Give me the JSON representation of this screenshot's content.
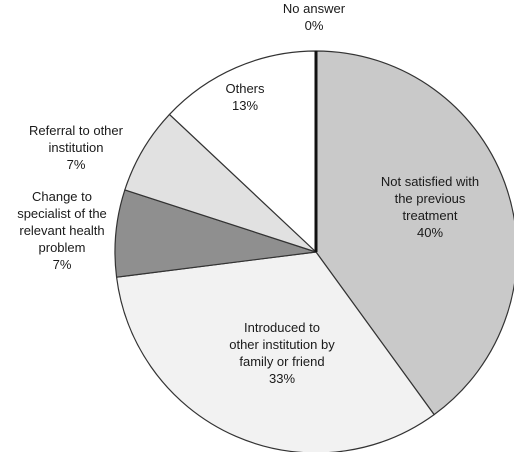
{
  "chart_data": {
    "type": "pie",
    "title": "",
    "slices": [
      {
        "label": [
          "Not satisfied with",
          "the previous",
          "treatment"
        ],
        "value": 40,
        "display": "40%",
        "color": "#c9c9c9"
      },
      {
        "label": [
          "Introduced to",
          "other institution by",
          "family or friend"
        ],
        "value": 33,
        "display": "33%",
        "color": "#f2f2f2"
      },
      {
        "label": [
          "Change to",
          "specialist of the",
          "relevant health",
          "problem"
        ],
        "value": 7,
        "display": "7%",
        "color": "#8f8f8f"
      },
      {
        "label": [
          "Referral to other",
          "institution"
        ],
        "value": 7,
        "display": "7%",
        "color": "#e1e1e1"
      },
      {
        "label": [
          "Others"
        ],
        "value": 13,
        "display": "13%",
        "color": "#ffffff"
      },
      {
        "label": [
          "No answer"
        ],
        "value": 0,
        "display": "0%",
        "color": "#111111"
      }
    ],
    "start": "12 o'clock",
    "direction": "clockwise",
    "border_color": "#333333"
  }
}
